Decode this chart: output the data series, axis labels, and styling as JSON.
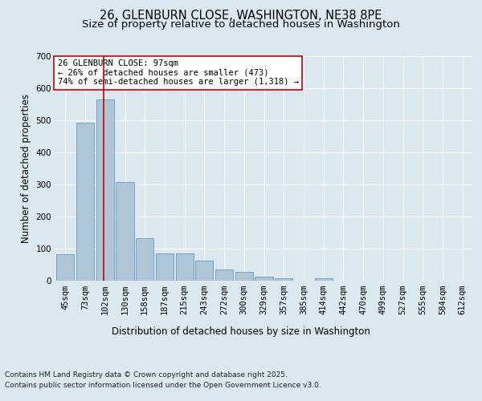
{
  "title_line1": "26, GLENBURN CLOSE, WASHINGTON, NE38 8PE",
  "title_line2": "Size of property relative to detached houses in Washington",
  "xlabel": "Distribution of detached houses by size in Washington",
  "ylabel": "Number of detached properties",
  "categories": [
    "45sqm",
    "73sqm",
    "102sqm",
    "130sqm",
    "158sqm",
    "187sqm",
    "215sqm",
    "243sqm",
    "272sqm",
    "300sqm",
    "329sqm",
    "357sqm",
    "385sqm",
    "414sqm",
    "442sqm",
    "470sqm",
    "499sqm",
    "527sqm",
    "555sqm",
    "584sqm",
    "612sqm"
  ],
  "values": [
    83,
    493,
    565,
    307,
    133,
    85,
    85,
    63,
    35,
    28,
    13,
    8,
    0,
    8,
    0,
    0,
    0,
    0,
    0,
    0,
    0
  ],
  "bar_color": "#aec6d8",
  "bar_edge_color": "#6699bb",
  "vline_color": "#cc0000",
  "vline_index": 1.93,
  "annotation_text": "26 GLENBURN CLOSE: 97sqm\n← 26% of detached houses are smaller (473)\n74% of semi-detached houses are larger (1,318) →",
  "annotation_box_color": "#ffffff",
  "annotation_box_edge": "#cc0000",
  "bg_color": "#dce8f0",
  "plot_bg_color": "#dce8f0",
  "ylim": [
    0,
    700
  ],
  "yticks": [
    0,
    100,
    200,
    300,
    400,
    500,
    600,
    700
  ],
  "title_fontsize": 10.5,
  "subtitle_fontsize": 9.5,
  "axis_label_fontsize": 8.5,
  "tick_fontsize": 7.5,
  "annotation_fontsize": 7.5,
  "footer_fontsize": 6.5,
  "footer_line1": "Contains HM Land Registry data © Crown copyright and database right 2025.",
  "footer_line2": "Contains public sector information licensed under the Open Government Licence v3.0."
}
